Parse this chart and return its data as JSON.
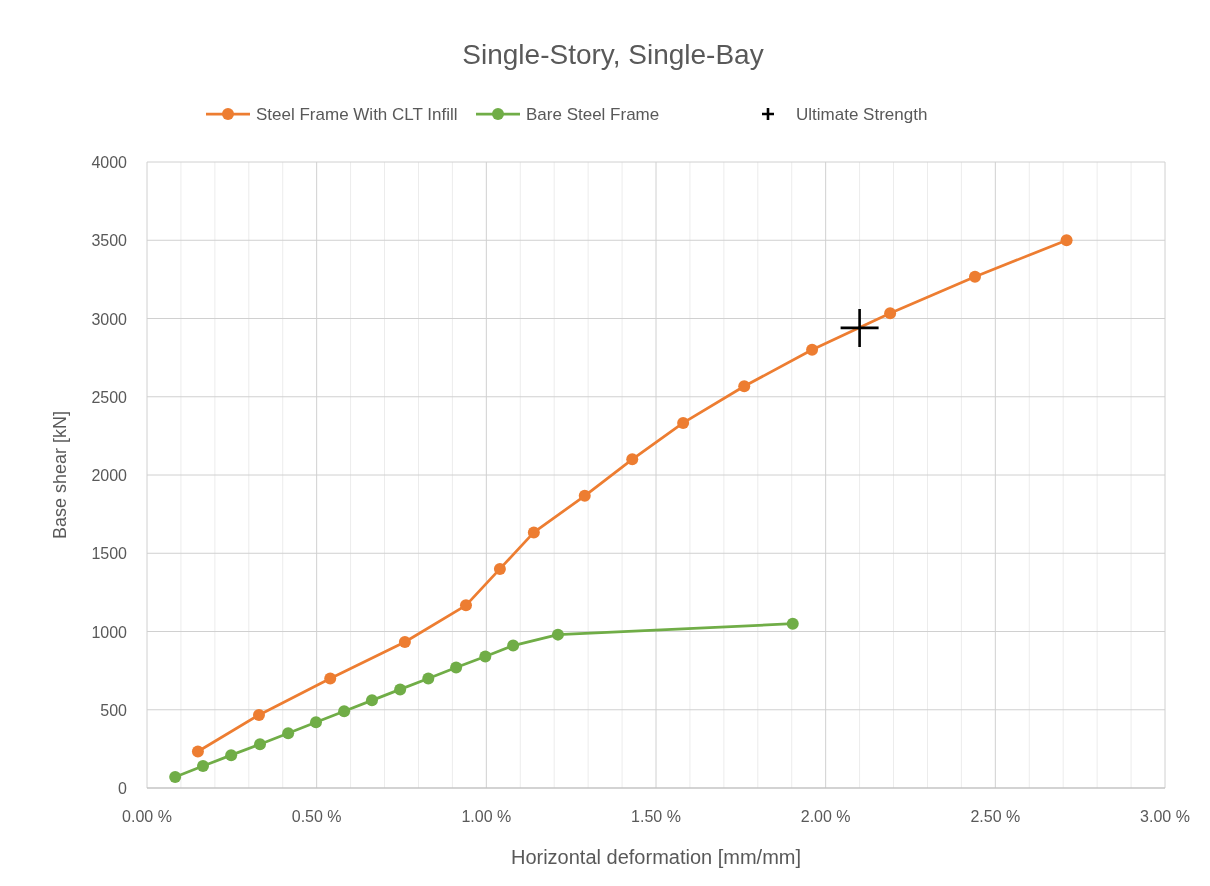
{
  "chart_data": {
    "type": "line",
    "title": "Single-Story, Single-Bay",
    "xlabel": "Horizontal deformation [mm/mm]",
    "ylabel": "Base shear [kN]",
    "xlim": [
      0,
      3
    ],
    "ylim": [
      0,
      4000
    ],
    "xticks": [
      {
        "value": 0,
        "label": "0.00 %"
      },
      {
        "value": 0.1,
        "label": null
      },
      {
        "value": 0.2,
        "label": null
      },
      {
        "value": 0.3,
        "label": null
      },
      {
        "value": 0.4,
        "label": null
      },
      {
        "value": 0.5,
        "label": "0.50 %"
      },
      {
        "value": 0.6,
        "label": null
      },
      {
        "value": 0.7,
        "label": null
      },
      {
        "value": 0.8,
        "label": null
      },
      {
        "value": 0.9,
        "label": null
      },
      {
        "value": 1,
        "label": "1.00 %"
      },
      {
        "value": 1.1,
        "label": null
      },
      {
        "value": 1.2,
        "label": null
      },
      {
        "value": 1.3,
        "label": null
      },
      {
        "value": 1.4,
        "label": null
      },
      {
        "value": 1.5,
        "label": "1.50 %"
      },
      {
        "value": 1.6,
        "label": null
      },
      {
        "value": 1.7,
        "label": null
      },
      {
        "value": 1.8,
        "label": null
      },
      {
        "value": 1.9,
        "label": null
      },
      {
        "value": 2,
        "label": "2.00 %"
      },
      {
        "value": 2.1,
        "label": null
      },
      {
        "value": 2.2,
        "label": null
      },
      {
        "value": 2.3,
        "label": null
      },
      {
        "value": 2.4,
        "label": null
      },
      {
        "value": 2.5,
        "label": "2.50 %"
      },
      {
        "value": 2.6,
        "label": null
      },
      {
        "value": 2.7,
        "label": null
      },
      {
        "value": 2.8,
        "label": null
      },
      {
        "value": 2.9,
        "label": null
      },
      {
        "value": 3,
        "label": "3.00 %"
      }
    ],
    "yticks": [
      0,
      500,
      1000,
      1500,
      2000,
      2500,
      3000,
      3500,
      4000
    ],
    "grid": true,
    "legend": "top",
    "marker": "circle",
    "line_style": "solid",
    "series": [
      {
        "name": "Steel Frame With CLT Infill",
        "color": "#ed7d31",
        "x": [
          0.15,
          0.33,
          0.54,
          0.76,
          0.94,
          1.04,
          1.14,
          1.29,
          1.43,
          1.58,
          1.76,
          1.96,
          2.19,
          2.44,
          2.71
        ],
        "values": [
          233,
          467,
          700,
          933,
          1167,
          1400,
          1633,
          1867,
          2100,
          2333,
          2567,
          2800,
          3033,
          3267,
          3500
        ]
      },
      {
        "name": "Bare Steel Frame",
        "color": "#70ad47",
        "x": [
          0.083,
          0.165,
          0.248,
          0.333,
          0.416,
          0.498,
          0.581,
          0.663,
          0.746,
          0.829,
          0.911,
          0.997,
          1.079,
          1.211,
          1.903
        ],
        "values": [
          70,
          140,
          210,
          280,
          350,
          420,
          490,
          560,
          630,
          700,
          770,
          840,
          910,
          980,
          1050
        ]
      },
      {
        "name": "Ultimate Strength",
        "type": "scatter",
        "marker": "cross",
        "color": "#000000",
        "x": [
          2.1
        ],
        "values": [
          2940
        ]
      }
    ]
  }
}
